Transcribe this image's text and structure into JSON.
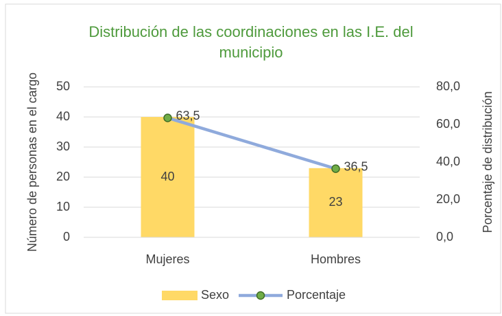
{
  "chart_data": {
    "type": "bar",
    "title": "Distribución de las coordinaciones en las I.E. del municipio",
    "y_label": "Número de personas en el cargo",
    "y2_label": "Porcentaje de distribución",
    "categories": [
      "Mujeres",
      "Hombres"
    ],
    "series": [
      {
        "name": "Sexo",
        "type": "bar",
        "color": "#ffd966",
        "values": [
          40,
          23
        ]
      },
      {
        "name": "Porcentaje",
        "type": "line",
        "axis": "y2",
        "color": "#8faadc",
        "marker_color": "#70ad47",
        "values": [
          63.5,
          36.5
        ],
        "value_labels": [
          "63,5",
          "36,5"
        ]
      }
    ],
    "ylim": [
      0,
      50
    ],
    "yticks": [
      0,
      10,
      20,
      30,
      40,
      50
    ],
    "y2lim": [
      0,
      80
    ],
    "y2ticks": [
      {
        "value": 0,
        "label": "0,0"
      },
      {
        "value": 20,
        "label": "20,0"
      },
      {
        "value": 40,
        "label": "40,0"
      },
      {
        "value": 60,
        "label": "60,0"
      },
      {
        "value": 80,
        "label": "80,0"
      }
    ],
    "grid": true,
    "legend": "bottom"
  }
}
